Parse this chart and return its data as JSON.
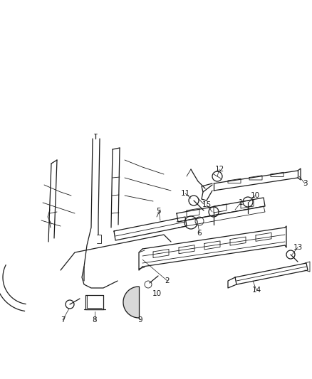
{
  "background_color": "#ffffff",
  "line_color": "#1a1a1a",
  "figsize": [
    4.38,
    5.33
  ],
  "dpi": 100,
  "label_fontsize": 7.5,
  "lw_thin": 0.6,
  "lw_med": 0.9,
  "lw_thick": 1.2
}
